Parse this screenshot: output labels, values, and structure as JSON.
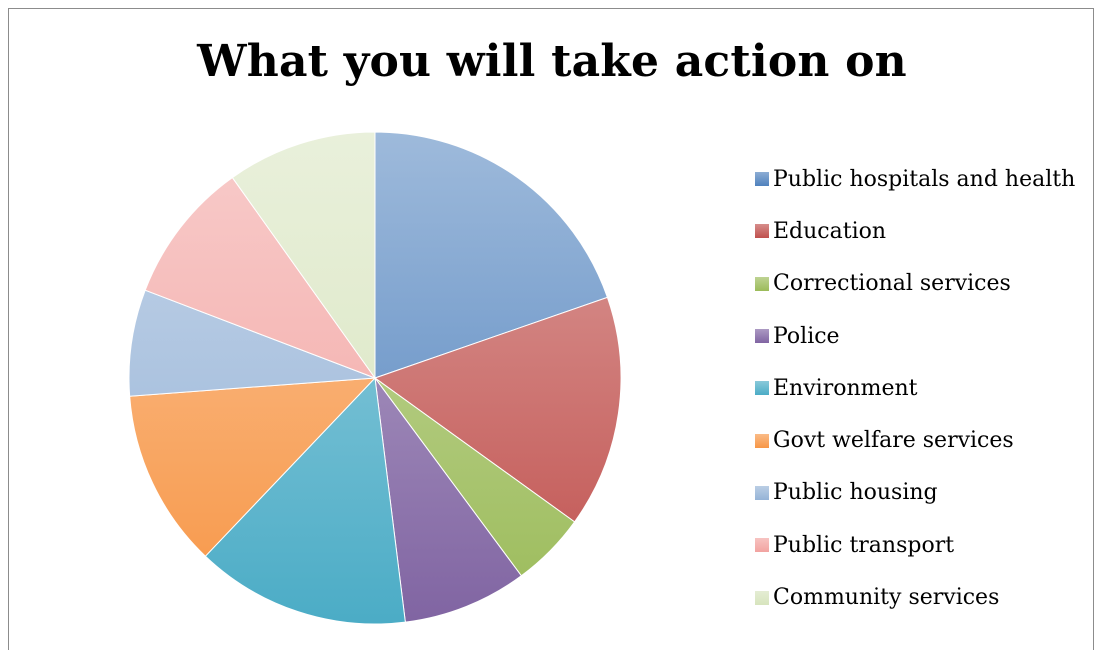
{
  "chart_data": {
    "type": "pie",
    "title": "What you will take action on",
    "categories": [
      "Public hospitals and health",
      "Education",
      "Correctional services",
      "Police",
      "Environment",
      "Govt welfare services",
      "Public housing",
      "Public transport",
      "Community services"
    ],
    "values": [
      20.0,
      15.5,
      5.0,
      8.3,
      14.3,
      11.9,
      7.1,
      9.5,
      10.0
    ],
    "colors": [
      "#4f81bd",
      "#c0504d",
      "#9bbb59",
      "#8064a2",
      "#4bacc6",
      "#f79646",
      "#95b3d7",
      "#f2a3a0",
      "#d7e4bd"
    ],
    "legend_position": "right"
  }
}
